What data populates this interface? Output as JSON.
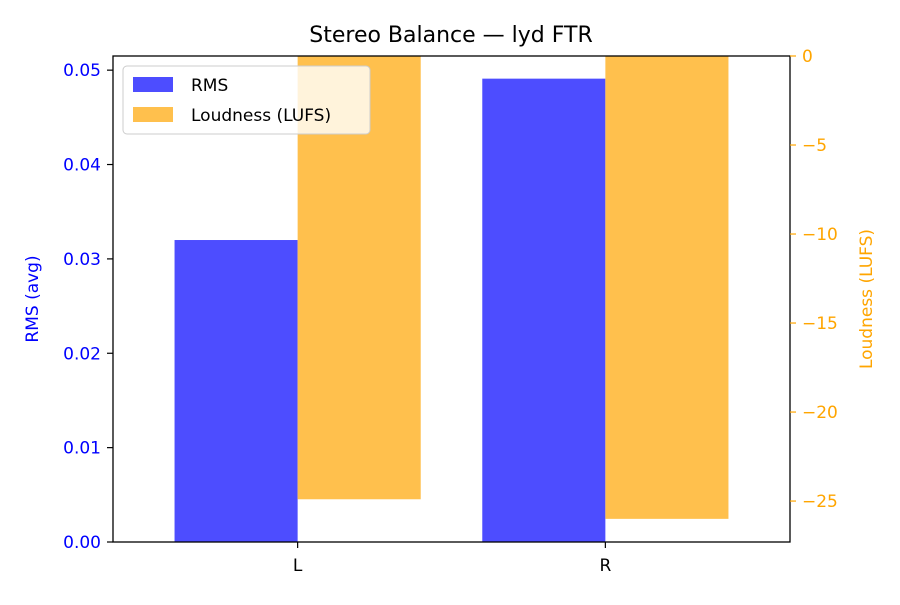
{
  "chart_data": {
    "type": "bar",
    "title": "Stereo Balance — lyd FTR",
    "categories": [
      "L",
      "R"
    ],
    "series": [
      {
        "name": "RMS",
        "axis": "left",
        "color": "#4d4dff",
        "values": [
          0.032,
          0.0491
        ]
      },
      {
        "name": "Loudness (LUFS)",
        "axis": "right",
        "color": "#ffc04d",
        "values": [
          -24.9,
          -26.0
        ]
      }
    ],
    "y_left": {
      "label": "RMS (avg)",
      "color": "#0000ff",
      "range": [
        0,
        0.0515
      ],
      "ticks": [
        0.0,
        0.01,
        0.02,
        0.03,
        0.04,
        0.05
      ],
      "tick_labels": [
        "0.00",
        "0.01",
        "0.02",
        "0.03",
        "0.04",
        "0.05"
      ]
    },
    "y_right": {
      "label": "Loudness (LUFS)",
      "color": "#ffa500",
      "range": [
        -27.3,
        0
      ],
      "ticks": [
        0,
        -5,
        -10,
        -15,
        -20,
        -25
      ],
      "tick_labels": [
        "0",
        "−5",
        "−10",
        "−15",
        "−20",
        "−25"
      ]
    },
    "grid": false,
    "legend": {
      "placement": "top-left",
      "entries": [
        "RMS",
        "Loudness (LUFS)"
      ]
    }
  }
}
